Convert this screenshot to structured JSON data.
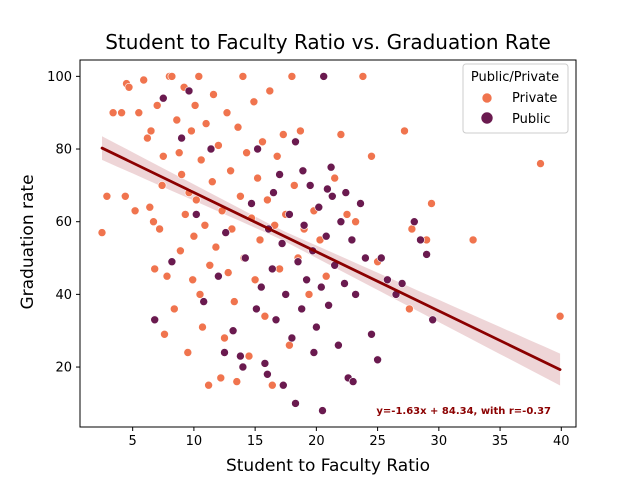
{
  "chart_data": {
    "type": "scatter",
    "title": "Student to Faculty Ratio vs. Graduation Rate",
    "xlabel": "Student to Faculty Ratio",
    "ylabel": "Graduation rate",
    "xlim": [
      0.7,
      41.2
    ],
    "ylim": [
      3.5,
      104.5
    ],
    "xticks": [
      5,
      10,
      15,
      20,
      25,
      30,
      35,
      40
    ],
    "yticks": [
      20,
      40,
      60,
      80,
      100
    ],
    "grid": false,
    "legend": {
      "title": "Public/Private",
      "placement": "top-right",
      "entries": [
        {
          "name": "Private",
          "color": "#f0744e"
        },
        {
          "name": "Public",
          "color": "#6a1a4f"
        }
      ]
    },
    "series": [
      {
        "name": "Private",
        "color": "#f0744e",
        "points": [
          [
            2.5,
            57
          ],
          [
            2.9,
            67
          ],
          [
            3.4,
            90
          ],
          [
            4.1,
            90
          ],
          [
            4.4,
            67
          ],
          [
            4.5,
            98
          ],
          [
            4.7,
            97
          ],
          [
            5.2,
            63
          ],
          [
            5.5,
            90
          ],
          [
            5.9,
            99
          ],
          [
            6.2,
            83
          ],
          [
            6.4,
            64
          ],
          [
            6.5,
            85
          ],
          [
            6.7,
            60
          ],
          [
            6.8,
            47
          ],
          [
            7.0,
            92
          ],
          [
            7.2,
            58
          ],
          [
            7.4,
            70
          ],
          [
            7.5,
            78
          ],
          [
            7.6,
            29
          ],
          [
            7.8,
            45
          ],
          [
            8.0,
            100
          ],
          [
            8.2,
            100
          ],
          [
            8.4,
            36
          ],
          [
            8.6,
            88
          ],
          [
            8.8,
            79
          ],
          [
            8.9,
            52
          ],
          [
            9.0,
            73
          ],
          [
            9.2,
            97
          ],
          [
            9.3,
            62
          ],
          [
            9.5,
            24
          ],
          [
            9.6,
            68
          ],
          [
            9.8,
            85
          ],
          [
            9.9,
            44
          ],
          [
            10.0,
            56
          ],
          [
            10.1,
            92
          ],
          [
            10.2,
            66
          ],
          [
            10.4,
            100
          ],
          [
            10.5,
            40
          ],
          [
            10.6,
            77
          ],
          [
            10.7,
            31
          ],
          [
            10.9,
            59
          ],
          [
            11.0,
            87
          ],
          [
            11.2,
            15
          ],
          [
            11.3,
            48
          ],
          [
            11.5,
            71
          ],
          [
            11.6,
            95
          ],
          [
            11.8,
            53
          ],
          [
            12.0,
            81
          ],
          [
            12.2,
            17
          ],
          [
            12.3,
            63
          ],
          [
            12.5,
            28
          ],
          [
            12.7,
            90
          ],
          [
            12.8,
            46
          ],
          [
            13.0,
            74
          ],
          [
            13.1,
            58
          ],
          [
            13.3,
            38
          ],
          [
            13.5,
            16
          ],
          [
            13.6,
            86
          ],
          [
            13.8,
            67
          ],
          [
            14.0,
            100
          ],
          [
            14.1,
            50
          ],
          [
            14.3,
            79
          ],
          [
            14.5,
            23
          ],
          [
            14.7,
            61
          ],
          [
            14.9,
            93
          ],
          [
            15.0,
            44
          ],
          [
            15.2,
            72
          ],
          [
            15.4,
            55
          ],
          [
            15.6,
            82
          ],
          [
            15.8,
            34
          ],
          [
            16.0,
            66
          ],
          [
            16.2,
            96
          ],
          [
            16.4,
            15
          ],
          [
            16.6,
            59
          ],
          [
            16.8,
            78
          ],
          [
            17.0,
            47
          ],
          [
            17.3,
            84
          ],
          [
            17.5,
            62
          ],
          [
            17.8,
            26
          ],
          [
            18.0,
            100
          ],
          [
            18.2,
            70
          ],
          [
            18.5,
            50
          ],
          [
            18.7,
            85
          ],
          [
            19.0,
            58
          ],
          [
            19.4,
            40
          ],
          [
            19.8,
            63
          ],
          [
            20.3,
            55
          ],
          [
            20.8,
            45
          ],
          [
            21.5,
            72
          ],
          [
            22.0,
            84
          ],
          [
            22.5,
            62
          ],
          [
            23.2,
            60
          ],
          [
            23.8,
            100
          ],
          [
            24.5,
            78
          ],
          [
            25.0,
            49
          ],
          [
            27.2,
            85
          ],
          [
            27.8,
            58
          ],
          [
            27.6,
            36
          ],
          [
            29.0,
            55
          ],
          [
            29.4,
            65
          ],
          [
            32.8,
            55
          ],
          [
            38.3,
            76
          ],
          [
            39.9,
            34
          ]
        ]
      },
      {
        "name": "Public",
        "color": "#6a1a4f",
        "points": [
          [
            6.8,
            33
          ],
          [
            7.5,
            94
          ],
          [
            8.2,
            49
          ],
          [
            9.0,
            83
          ],
          [
            9.6,
            96
          ],
          [
            10.2,
            62
          ],
          [
            10.8,
            38
          ],
          [
            11.4,
            80
          ],
          [
            12.0,
            45
          ],
          [
            12.6,
            57
          ],
          [
            13.2,
            30
          ],
          [
            13.8,
            23
          ],
          [
            14.2,
            50
          ],
          [
            14.7,
            65
          ],
          [
            15.1,
            36
          ],
          [
            15.5,
            42
          ],
          [
            15.8,
            21
          ],
          [
            16.1,
            58
          ],
          [
            16.4,
            47
          ],
          [
            16.7,
            33
          ],
          [
            17.0,
            73
          ],
          [
            17.2,
            54
          ],
          [
            17.5,
            40
          ],
          [
            17.8,
            62
          ],
          [
            18.0,
            28
          ],
          [
            18.3,
            82
          ],
          [
            18.5,
            49
          ],
          [
            18.8,
            36
          ],
          [
            19.0,
            59
          ],
          [
            19.2,
            44
          ],
          [
            19.5,
            70
          ],
          [
            19.7,
            52
          ],
          [
            20.0,
            31
          ],
          [
            20.2,
            64
          ],
          [
            20.4,
            42
          ],
          [
            20.6,
            100
          ],
          [
            20.8,
            56
          ],
          [
            21.0,
            37
          ],
          [
            21.3,
            67
          ],
          [
            21.5,
            48
          ],
          [
            21.8,
            26
          ],
          [
            22.0,
            60
          ],
          [
            22.3,
            43
          ],
          [
            22.6,
            17
          ],
          [
            22.9,
            55
          ],
          [
            23.2,
            40
          ],
          [
            23.6,
            65
          ],
          [
            24.0,
            50
          ],
          [
            24.5,
            29
          ],
          [
            25.0,
            22
          ],
          [
            25.3,
            50
          ],
          [
            25.8,
            44
          ],
          [
            26.5,
            40
          ],
          [
            27.0,
            43
          ],
          [
            28.0,
            60
          ],
          [
            28.5,
            55
          ],
          [
            29.0,
            51
          ],
          [
            29.5,
            33
          ],
          [
            18.3,
            10
          ],
          [
            20.5,
            8
          ],
          [
            16.0,
            18
          ],
          [
            17.3,
            15
          ],
          [
            19.8,
            24
          ],
          [
            23.0,
            16
          ],
          [
            12.5,
            24
          ],
          [
            14.0,
            20
          ],
          [
            15.2,
            80
          ],
          [
            16.5,
            68
          ],
          [
            18.9,
            74
          ],
          [
            21.2,
            75
          ],
          [
            22.4,
            68
          ],
          [
            20.9,
            69
          ]
        ]
      }
    ],
    "regression": {
      "slope": -1.63,
      "intercept": 84.34,
      "r": -0.37,
      "x_range": [
        2.5,
        39.9
      ],
      "line_color": "#8b0000",
      "band_color": "#e8c7c9",
      "label": "y=-1.63x + 84.34, with r=-0.37"
    }
  }
}
